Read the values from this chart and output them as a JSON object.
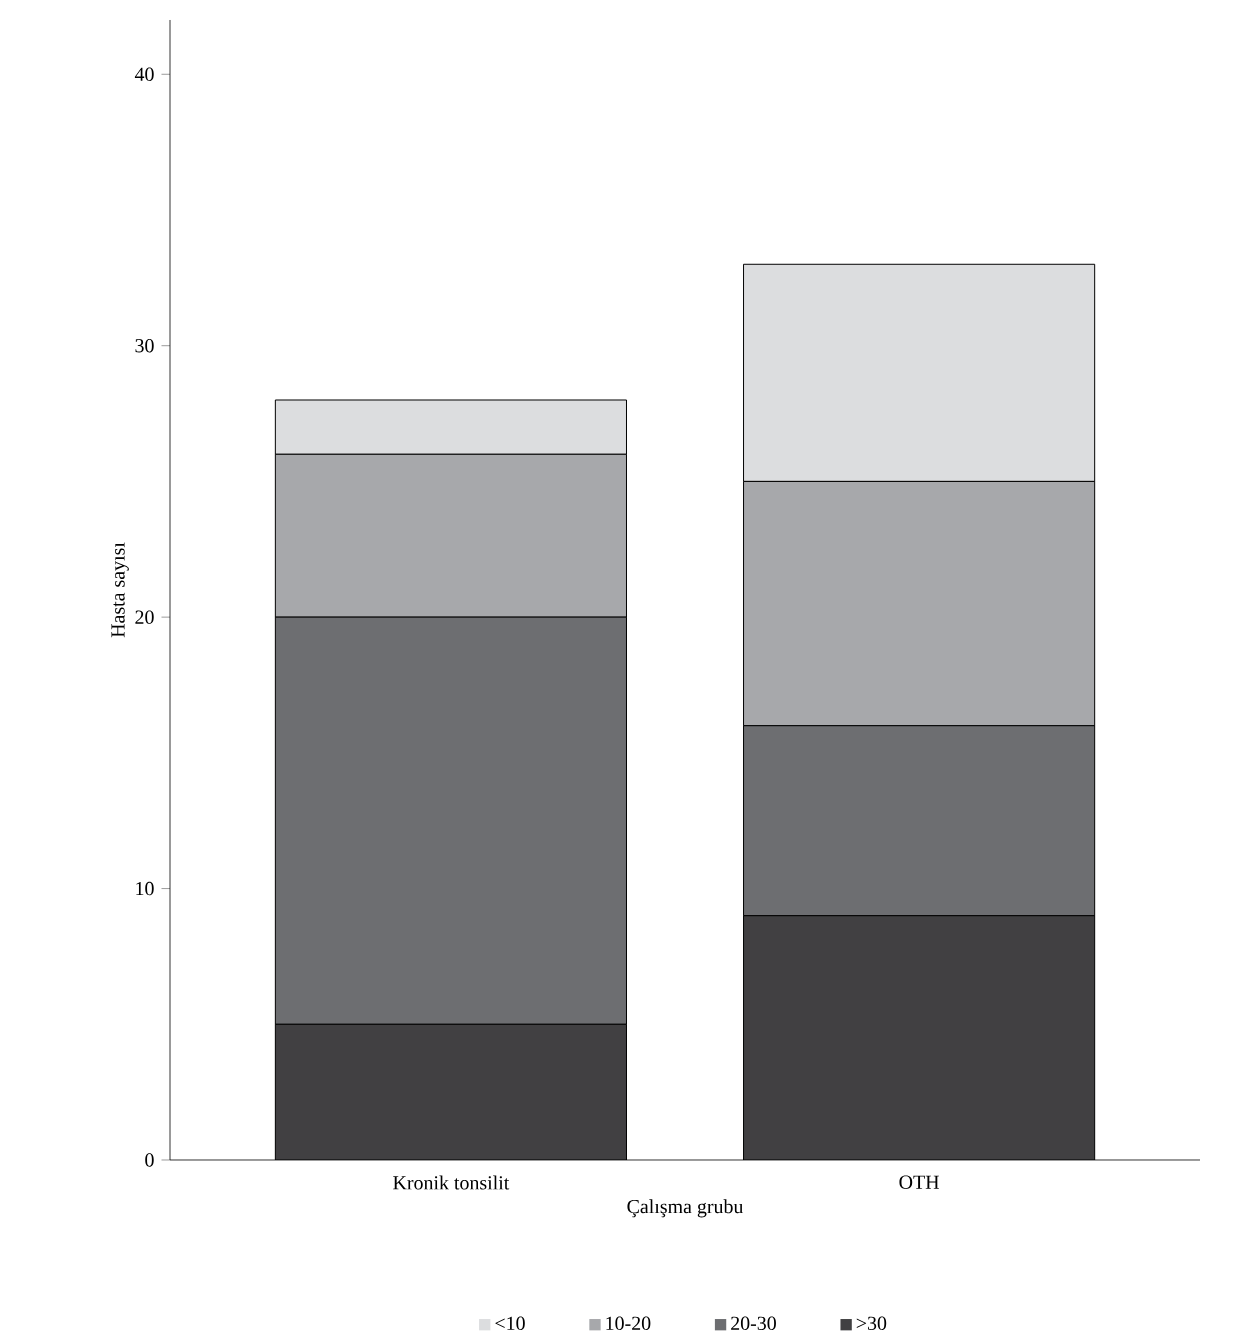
{
  "chart_data": {
    "type": "bar",
    "stacked": true,
    "xlabel": "Çalışma grubu",
    "ylabel": "Hasta sayısı",
    "categories": [
      "Kronik tonsilit",
      "OTH"
    ],
    "series": [
      {
        "name": ">30",
        "color": "#414042",
        "values": [
          5,
          9
        ]
      },
      {
        "name": "20-30",
        "color": "#6d6e71",
        "values": [
          15,
          7
        ]
      },
      {
        "name": "10-20",
        "color": "#a7a8ab",
        "values": [
          6,
          9
        ]
      },
      {
        "name": "<10",
        "color": "#dcdddf",
        "values": [
          2,
          8
        ]
      }
    ],
    "ylim": [
      0,
      42
    ],
    "yticks": [
      0,
      10,
      20,
      30,
      40
    ],
    "legend": "bottom",
    "grid": false
  }
}
